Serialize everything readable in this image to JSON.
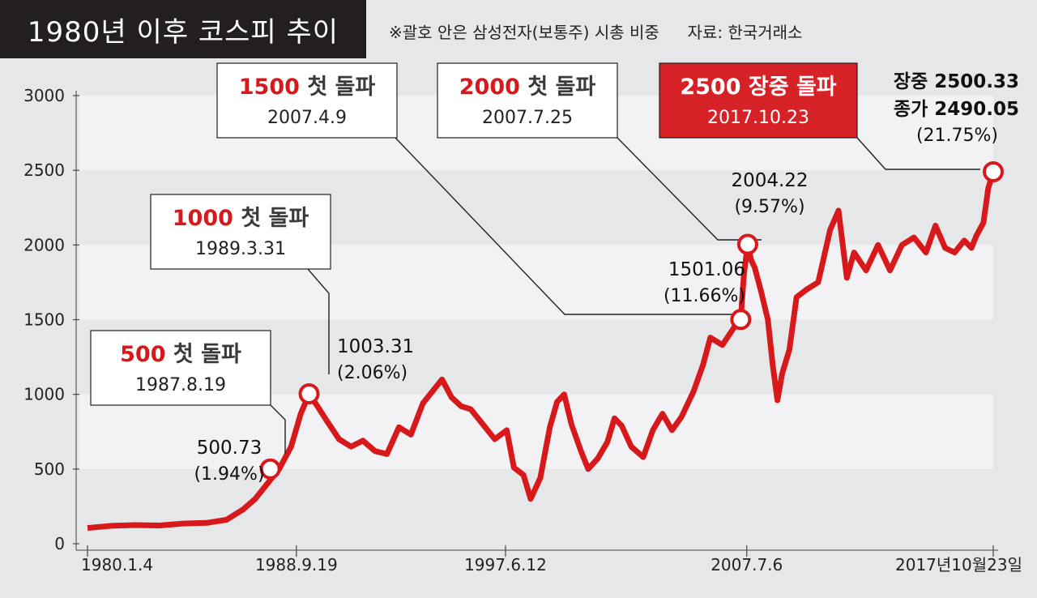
{
  "header": {
    "title": "1980년 이후 코스피 추이",
    "note": "※괄호 안은 삼성전자(보통주) 시총 비중",
    "source": "자료: 한국거래소"
  },
  "colors": {
    "line": "#d7191c",
    "highlight_box": "#d62227",
    "title_bg": "#231f20",
    "band": "#f2f2f4",
    "background": "#e6e7e9"
  },
  "chart_data": {
    "type": "line",
    "title": "1980년 이후 코스피 추이",
    "xlabel": "",
    "ylabel": "",
    "ylim": [
      0,
      3000
    ],
    "y_ticks": [
      0,
      500,
      1000,
      1500,
      2000,
      2500,
      3000
    ],
    "y_tick_labels": [
      "0",
      "500",
      "1000",
      "1500",
      "2000",
      "2500",
      "3000"
    ],
    "x_ticks": [
      "1980.1.4",
      "1988.9.19",
      "1997.6.12",
      "2007.7.6",
      "2017년10월23일"
    ],
    "series": [
      {
        "name": "",
        "x": [
          1980.0,
          1981.0,
          1982.0,
          1983.0,
          1984.0,
          1985.0,
          1985.8,
          1986.5,
          1987.0,
          1987.6,
          1988.0,
          1988.5,
          1988.9,
          1989.25,
          1989.6,
          1990.0,
          1990.5,
          1991.0,
          1991.5,
          1992.0,
          1992.5,
          1993.0,
          1993.5,
          1994.0,
          1994.8,
          1995.2,
          1995.6,
          1996.0,
          1996.5,
          1997.0,
          1997.5,
          1997.8,
          1998.2,
          1998.5,
          1998.9,
          1999.3,
          1999.6,
          1999.9,
          2000.2,
          2000.6,
          2000.9,
          2001.3,
          2001.7,
          2002.0,
          2002.3,
          2002.7,
          2003.2,
          2003.6,
          2004.0,
          2004.4,
          2004.8,
          2005.3,
          2005.7,
          2006.0,
          2006.5,
          2007.0,
          2007.27,
          2007.4,
          2007.56,
          2007.7,
          2007.85,
          2008.1,
          2008.4,
          2008.6,
          2008.8,
          2009.0,
          2009.3,
          2009.6,
          2010.0,
          2010.5,
          2011.0,
          2011.35,
          2011.7,
          2012.0,
          2012.5,
          2013.0,
          2013.5,
          2014.0,
          2014.5,
          2015.0,
          2015.4,
          2015.8,
          2016.2,
          2016.6,
          2016.9,
          2017.1,
          2017.4,
          2017.6,
          2017.81
        ],
        "values": [
          105,
          120,
          125,
          122,
          135,
          140,
          160,
          230,
          300,
          420,
          500,
          650,
          870,
          1003,
          920,
          820,
          700,
          650,
          690,
          620,
          600,
          780,
          730,
          940,
          1100,
          980,
          920,
          900,
          800,
          700,
          760,
          510,
          460,
          300,
          440,
          780,
          950,
          1000,
          800,
          620,
          500,
          570,
          680,
          840,
          790,
          650,
          580,
          760,
          870,
          760,
          850,
          1020,
          1200,
          1380,
          1330,
          1450,
          1501,
          1800,
          2004,
          1900,
          1850,
          1700,
          1500,
          1200,
          960,
          1140,
          1300,
          1650,
          1700,
          1750,
          2100,
          2230,
          1780,
          1950,
          1830,
          2000,
          1830,
          2000,
          2050,
          1950,
          2130,
          1980,
          1950,
          2030,
          1980,
          2060,
          2150,
          2380,
          2490
        ]
      }
    ],
    "markers": [
      {
        "label": "500.73",
        "sub": "(1.94%)"
      },
      {
        "label": "1003.31",
        "sub": "(2.06%)"
      },
      {
        "label": "1501.06",
        "sub": "(11.66%)"
      },
      {
        "label": "2004.22",
        "sub": "(9.57%)"
      },
      {
        "label": "장중 2500.33",
        "label2": "종가 2490.05",
        "sub": "(21.75%)"
      }
    ],
    "callouts": [
      {
        "num": "500",
        "text": "첫 돌파",
        "date": "1987.8.19"
      },
      {
        "num": "1000",
        "text": "첫 돌파",
        "date": "1989.3.31"
      },
      {
        "num": "1500",
        "text": "첫 돌파",
        "date": "2007.4.9"
      },
      {
        "num": "2000",
        "text": "첫 돌파",
        "date": "2007.7.25"
      },
      {
        "num": "2500",
        "text": "장중 돌파",
        "date": "2017.10.23"
      }
    ]
  }
}
